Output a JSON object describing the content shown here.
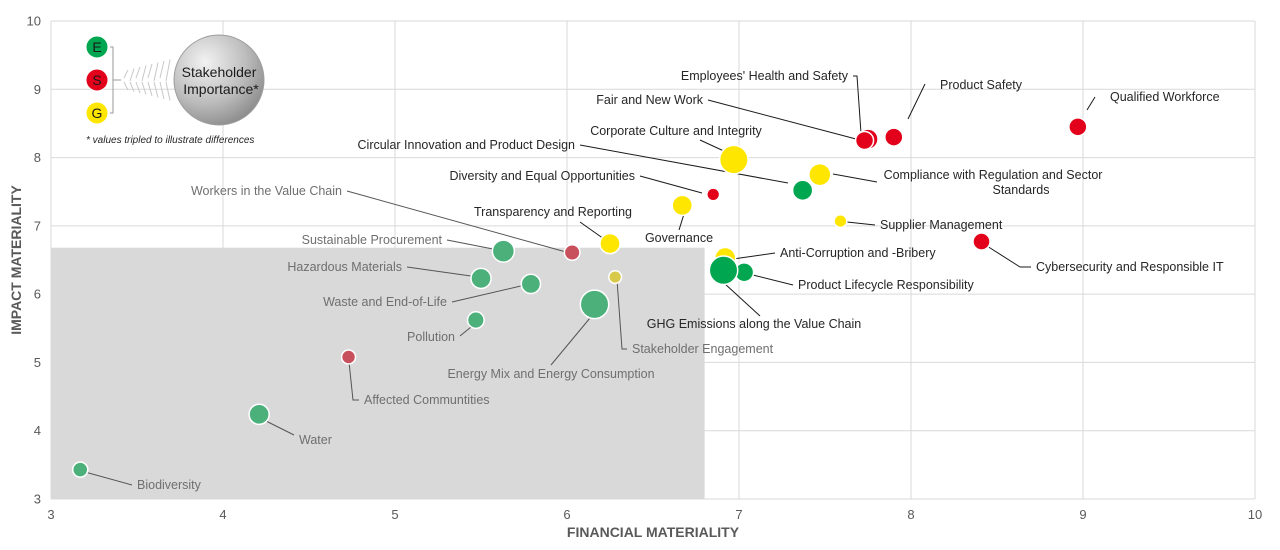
{
  "chart_data": {
    "type": "scatter",
    "xlabel": "FINANCIAL MATERIALITY",
    "ylabel": "IMPACT MATERIALITY",
    "xlim": [
      3,
      10
    ],
    "ylim": [
      3,
      10
    ],
    "xticks": [
      "3",
      "4",
      "5",
      "6",
      "7",
      "8",
      "9",
      "10"
    ],
    "yticks": [
      "3",
      "4",
      "5",
      "6",
      "7",
      "8",
      "9",
      "10"
    ],
    "grid": true,
    "shaded_region": {
      "x": [
        3,
        6.8
      ],
      "y": [
        3,
        6.68
      ]
    },
    "colors": {
      "E": "#00a650",
      "S": "#e2001a",
      "G": "#ffe600",
      "E_muted": "#4cb07a",
      "S_muted": "#c8505c",
      "G_muted": "#d9c94a"
    },
    "legend": {
      "items": [
        {
          "key": "E",
          "label": "E"
        },
        {
          "key": "S",
          "label": "S"
        },
        {
          "key": "G",
          "label": "G"
        }
      ],
      "bubble_label_1": "Stakeholder",
      "bubble_label_2": "Importance*",
      "note": "* values tripled to illustrate differences"
    },
    "points": [
      {
        "name": "Qualified Workforce",
        "cat": "S",
        "x": 8.97,
        "y": 8.45,
        "importance": 2
      },
      {
        "name": "Product Safety",
        "cat": "S",
        "x": 7.9,
        "y": 8.3,
        "importance": 2
      },
      {
        "name": "Employees' Health and Safety",
        "cat": "S",
        "x": 7.75,
        "y": 8.27,
        "importance": 2.5
      },
      {
        "name": "Fair and New Work",
        "cat": "S",
        "x": 7.73,
        "y": 8.25,
        "importance": 2
      },
      {
        "name": "Corporate Culture and Integrity",
        "cat": "G",
        "x": 6.97,
        "y": 7.97,
        "importance": 5
      },
      {
        "name": "Circular Innovation and Product Design",
        "cat": "E",
        "x": 7.37,
        "y": 7.52,
        "importance": 2.5
      },
      {
        "name": "Compliance with Regulation and Sector Standards",
        "cat": "G",
        "x": 7.47,
        "y": 7.75,
        "importance": 3
      },
      {
        "name": "Diversity and Equal Opportunities",
        "cat": "S",
        "x": 6.85,
        "y": 7.46,
        "importance": 1
      },
      {
        "name": "Workers in the Value Chain",
        "cat": "S",
        "x": 6.03,
        "y": 6.61,
        "importance": 1.5
      },
      {
        "name": "Transparency and Reporting",
        "cat": "G",
        "x": 6.25,
        "y": 6.74,
        "importance": 2.5
      },
      {
        "name": "Governance",
        "cat": "G",
        "x": 6.67,
        "y": 7.3,
        "importance": 2.5
      },
      {
        "name": "Supplier Management",
        "cat": "G",
        "x": 7.59,
        "y": 7.07,
        "importance": 1
      },
      {
        "name": "Cybersecurity and Responsible IT",
        "cat": "S",
        "x": 8.41,
        "y": 6.77,
        "importance": 1.8
      },
      {
        "name": "Anti-Corruption and -Bribery",
        "cat": "G",
        "x": 6.92,
        "y": 6.53,
        "importance": 2.7
      },
      {
        "name": "Product Lifecycle Responsibility",
        "cat": "E",
        "x": 7.03,
        "y": 6.32,
        "importance": 2.2
      },
      {
        "name": "GHG Emissions along the Value Chain",
        "cat": "E",
        "x": 6.91,
        "y": 6.35,
        "importance": 5
      },
      {
        "name": "Sustainable Procurement",
        "cat": "E",
        "x": 5.63,
        "y": 6.63,
        "importance": 3
      },
      {
        "name": "Hazardous Materials",
        "cat": "E",
        "x": 5.5,
        "y": 6.23,
        "importance": 2.5
      },
      {
        "name": "Waste and End-of-Life",
        "cat": "E",
        "x": 5.79,
        "y": 6.15,
        "importance": 2.3
      },
      {
        "name": "Stakeholder Engagement",
        "cat": "G",
        "x": 6.28,
        "y": 6.25,
        "importance": 1
      },
      {
        "name": "Energy Mix and Energy Consumption",
        "cat": "E",
        "x": 6.16,
        "y": 5.85,
        "importance": 5
      },
      {
        "name": "Pollution",
        "cat": "E",
        "x": 5.47,
        "y": 5.62,
        "importance": 1.7
      },
      {
        "name": "Affected Communtities",
        "cat": "S",
        "x": 4.73,
        "y": 5.08,
        "importance": 1.2
      },
      {
        "name": "Water",
        "cat": "E",
        "x": 4.21,
        "y": 4.24,
        "importance": 2.5
      },
      {
        "name": "Biodiversity",
        "cat": "E",
        "x": 3.17,
        "y": 3.43,
        "importance": 1.4
      }
    ]
  }
}
